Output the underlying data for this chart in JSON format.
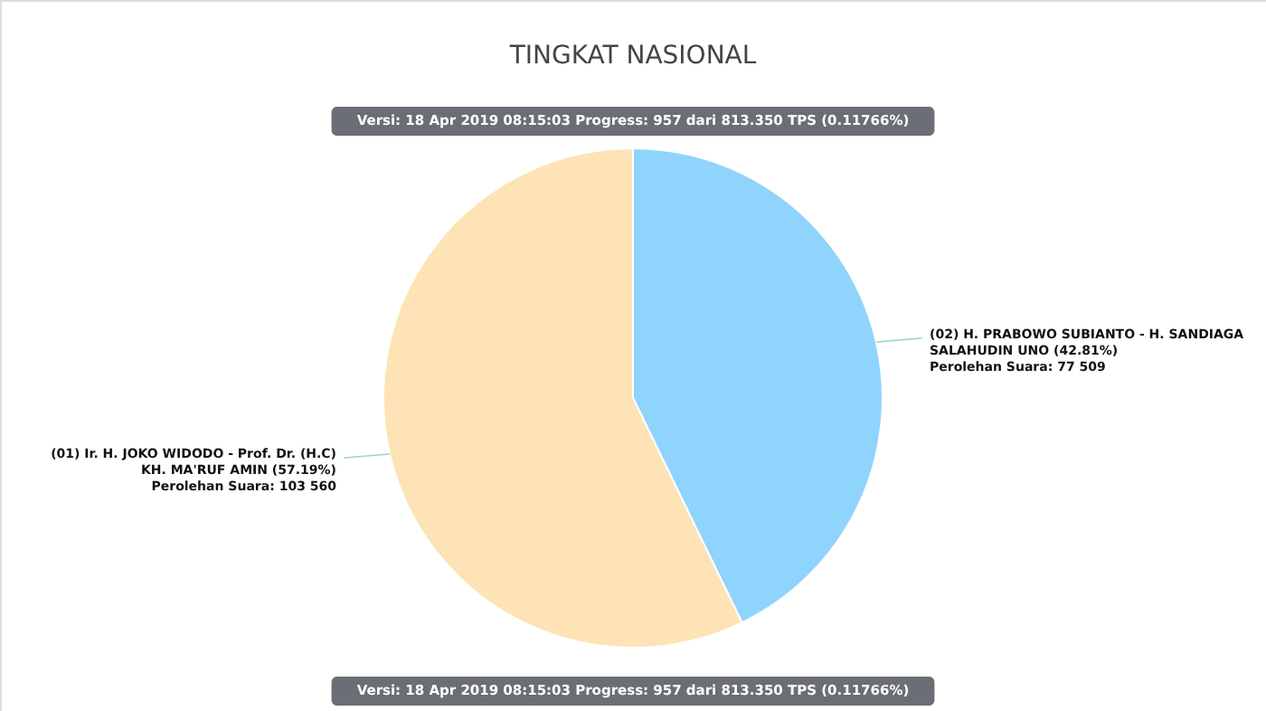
{
  "chart_data": {
    "type": "pie",
    "title": "TINGKAT NASIONAL",
    "subtitle": "Versi: 18 Apr 2019 08:15:03 Progress: 957 dari 813.350 TPS (0.11766%)",
    "annotations": [
      "Versi: 18 Apr 2019 08:15:03 Progress: 957 dari 813.350 TPS (0.11766%)"
    ],
    "categories": [
      "(02) H. PRABOWO SUBIANTO - H. SANDIAGA SALAHUDIN UNO (42.81%)",
      "(01) Ir. H. JOKO WIDODO - Prof. Dr. (H.C) KH. MA'RUF AMIN (57.19%)"
    ],
    "values": [
      77509,
      103560
    ],
    "colors": [
      "#8fd4fd",
      "#fde3b5"
    ],
    "value_labels": [
      "Perolehan Suara: 77 509",
      "Perolehan Suara: 103 560"
    ],
    "legend": false
  }
}
